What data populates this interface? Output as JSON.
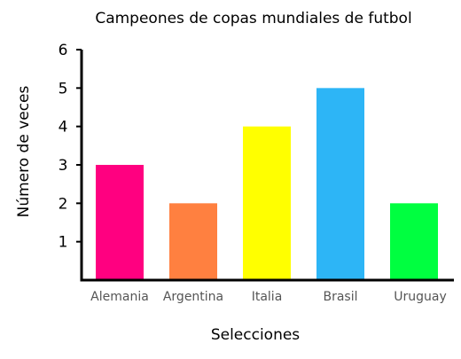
{
  "chart_data": {
    "type": "bar",
    "title": "Campeones de copas mundiales de futbol",
    "xlabel": "Selecciones",
    "ylabel": "Número de veces",
    "categories": [
      "Alemania",
      "Argentina",
      "Italia",
      "Brasil",
      "Uruguay"
    ],
    "values": [
      3,
      2,
      4,
      5,
      2
    ],
    "colors": [
      "#ff0080",
      "#ff8040",
      "#ffff00",
      "#2db5f6",
      "#00ff40"
    ],
    "ylim": [
      0,
      6
    ],
    "yticks": [
      1,
      2,
      3,
      4,
      5,
      6
    ],
    "grid": false,
    "legend": "none"
  }
}
